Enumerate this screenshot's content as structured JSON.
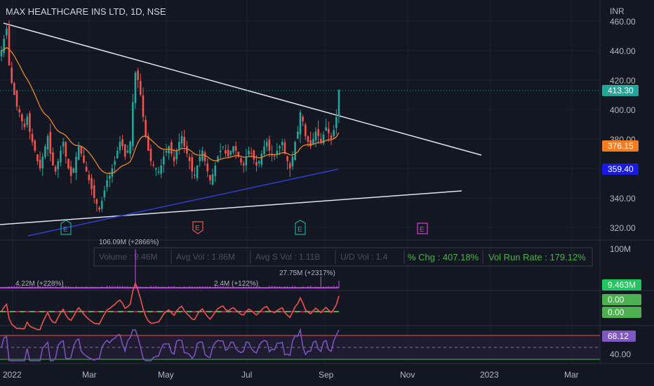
{
  "header": {
    "title": "MAX HEALTHCARE INS LTD, 1D, NSE",
    "currency": "INR"
  },
  "colors": {
    "background": "#131722",
    "grid": "#1e222d",
    "up": "#26a69a",
    "down": "#ef5350",
    "trendline": "#e0e3eb",
    "ma": "#e8862a",
    "support_ma": "#2f3dd1",
    "last_price": "#26a69a",
    "ma_badge": "#f57c1f",
    "blue_badge": "#1a1ae6",
    "volume": "#b542d8",
    "rsi": "#7e57c2",
    "rsi_badge": "#7e57c2",
    "green_badge": "#4caf50",
    "earnings_up": "#26a69a",
    "earnings_down": "#ef5350",
    "earnings_future": "#d63ad6"
  },
  "price_axis": {
    "ticks": [
      "460.00",
      "440.00",
      "420.00",
      "400.00",
      "380.00",
      "340.00",
      "320.00"
    ]
  },
  "badges": {
    "last": "413.30",
    "ma": "376.15",
    "support": "359.40"
  },
  "earnings_markers": [
    {
      "label": "E",
      "type": "up"
    },
    {
      "label": "E",
      "type": "down"
    },
    {
      "label": "E",
      "type": "up"
    },
    {
      "label": "E",
      "type": "future"
    }
  ],
  "volume_panel": {
    "axis_label": "100M",
    "badge": "9.463M",
    "stats": [
      "Volume : 9.46M",
      "Avg Vol : 1.86M",
      "Avg S Vol : 1.11B",
      "U/D Vol : 1.4"
    ],
    "pct_change": "% Chg : 407.18%",
    "run_rate": "Vol Run Rate : 179.12%",
    "annotations": [
      "106.09M (+2866%)",
      "4.22M (+228%)",
      "2.4M (+122%)",
      "27.75M (+2317%)"
    ]
  },
  "osc_panel": {
    "badge1": "0.00",
    "badge2": "0.00"
  },
  "rsi_panel": {
    "badge": "68.12",
    "axis_label": "40.00"
  },
  "time_axis": {
    "labels": [
      "2022",
      "Mar",
      "May",
      "Jul",
      "Sep",
      "Nov",
      "2023",
      "Mar"
    ]
  },
  "chart_data": {
    "type": "candlestick",
    "title": "MAX HEALTHCARE INS LTD, 1D, NSE",
    "y_range": [
      316,
      464
    ],
    "last_close": 413.3,
    "moving_average_last": 376.15,
    "support_line_last": 359.4,
    "closes_approx": [
      440,
      448,
      455,
      430,
      418,
      410,
      402,
      398,
      392,
      388,
      395,
      385,
      378,
      372,
      365,
      360,
      368,
      375,
      382,
      370,
      362,
      358,
      365,
      372,
      378,
      368,
      360,
      355,
      360,
      368,
      375,
      370,
      364,
      358,
      352,
      346,
      340,
      336,
      332,
      338,
      345,
      352,
      355,
      360,
      365,
      372,
      378,
      375,
      368,
      372,
      378,
      405,
      425,
      420,
      410,
      395,
      382,
      372,
      365,
      362,
      360,
      358,
      362,
      368,
      372,
      375,
      370,
      365,
      372,
      378,
      382,
      375,
      370,
      365,
      358,
      355,
      362,
      368,
      372,
      365,
      358,
      352,
      356,
      362,
      368,
      372,
      375,
      370,
      368,
      372,
      375,
      372,
      368,
      364,
      362,
      368,
      372,
      370,
      366,
      362,
      365,
      370,
      375,
      378,
      372,
      370,
      368,
      372,
      375,
      378,
      370,
      365,
      360,
      368,
      378,
      385,
      398,
      392,
      382,
      378,
      375,
      380,
      385,
      382,
      378,
      383,
      388,
      384,
      380,
      386,
      395,
      413.3
    ]
  }
}
